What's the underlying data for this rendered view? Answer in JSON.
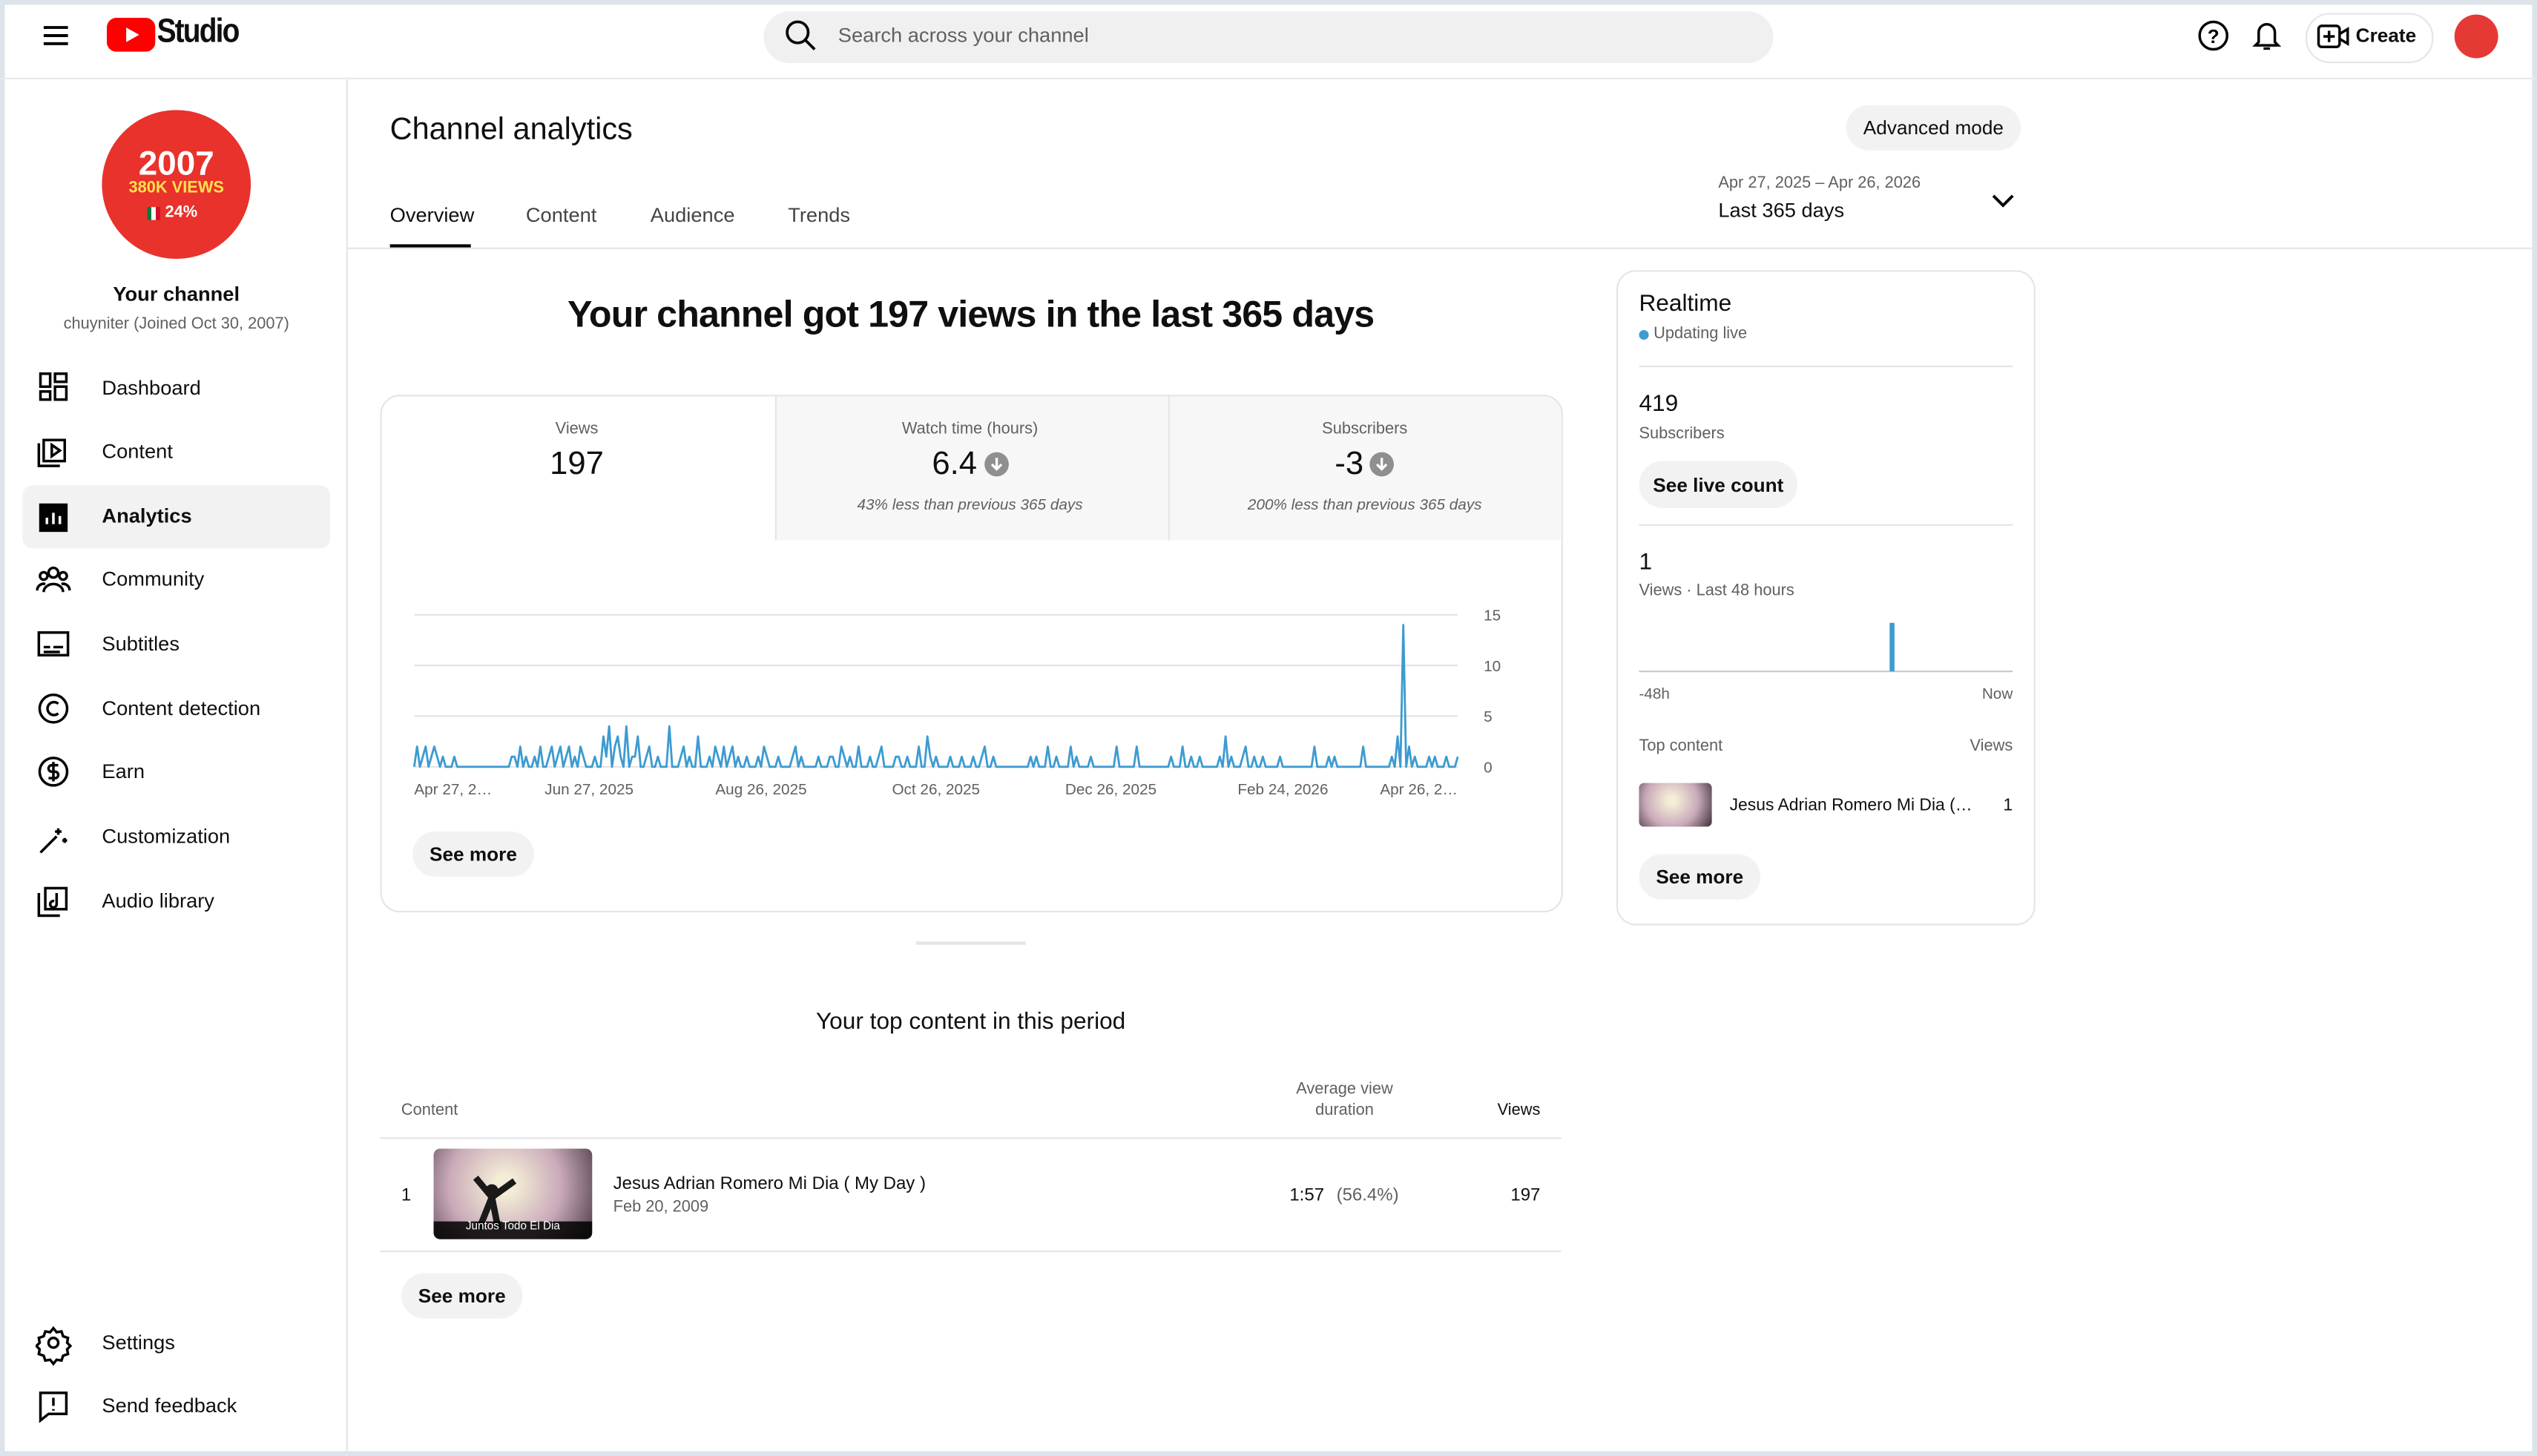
{
  "header": {
    "logo": "Studio",
    "search_placeholder": "Search across your channel",
    "create": "Create"
  },
  "sidebar": {
    "avatar_year": "2007",
    "avatar_views": "380K VIEWS",
    "avatar_pct": "24%",
    "channel_title": "Your channel",
    "channel_sub": "chuyniter (Joined Oct 30, 2007)",
    "nav": [
      "Dashboard",
      "Content",
      "Analytics",
      "Community",
      "Subtitles",
      "Content detection",
      "Earn",
      "Customization",
      "Audio library"
    ],
    "footer_nav": [
      "Settings",
      "Send feedback"
    ]
  },
  "page": {
    "title": "Channel analytics",
    "advanced_mode": "Advanced mode",
    "tabs": [
      "Overview",
      "Content",
      "Audience",
      "Trends"
    ],
    "date_range": "Apr 27, 2025 – Apr 26, 2026",
    "period": "Last 365 days"
  },
  "overview": {
    "headline": "Your channel got 197 views in the last 365 days",
    "metrics": [
      {
        "label": "Views",
        "value": 197
      },
      {
        "label": "Watch time (hours)",
        "value": 6.4,
        "note": "43% less than previous 365 days"
      },
      {
        "label": "Subscribers",
        "value": -3,
        "note": "200% less than previous 365 days"
      }
    ],
    "see_more": "See more"
  },
  "realtime": {
    "title": "Realtime",
    "status": "Updating live",
    "subscribers": 419,
    "subscribers_label": "Subscribers",
    "see_live_count": "See live count",
    "views": 1,
    "views_label": "Views · Last 48 hours",
    "top_content_label": "Top content",
    "views_col": "Views",
    "top_content": {
      "title": "Jesus Adrian Romero Mi Dia ( My Day )",
      "views": 1
    },
    "see_more": "See more"
  },
  "top_content": {
    "title": "Your top content in this period",
    "columns": [
      "Content",
      "Average view duration",
      "Views"
    ],
    "rows": [
      {
        "rank": 1,
        "title": "Jesus Adrian Romero Mi Dia ( My Day )",
        "date": "Feb 20, 2009",
        "thumb_caption": "Juntos Todo El Dia",
        "avg_duration": "1:57",
        "avg_pct": "(56.4%)",
        "views": 197
      }
    ],
    "see_more": "See more"
  },
  "chart_data": [
    {
      "type": "line",
      "color": "#3d9bd0",
      "grid": true,
      "xlim": [
        0,
        364
      ],
      "ylim": [
        0,
        15
      ],
      "yticks": [
        0,
        5,
        10,
        15
      ],
      "xticks": [
        {
          "value": 0,
          "label": "Apr 27, 2…"
        },
        {
          "value": 61,
          "label": "Jun 27, 2025"
        },
        {
          "value": 121,
          "label": "Aug 26, 2025"
        },
        {
          "value": 182,
          "label": "Oct 26, 2025"
        },
        {
          "value": 243,
          "label": "Dec 26, 2025"
        },
        {
          "value": 303,
          "label": "Feb 24, 2026"
        },
        {
          "value": 364,
          "label": "Apr 26, 2…"
        }
      ],
      "values": [
        0,
        2,
        0,
        1,
        2,
        0,
        1,
        2,
        1,
        0,
        1,
        0,
        0,
        0,
        1,
        0,
        0,
        0,
        0,
        0,
        0,
        0,
        0,
        0,
        0,
        0,
        0,
        0,
        0,
        0,
        0,
        0,
        0,
        0,
        1,
        1,
        0,
        2,
        0,
        1,
        0,
        0,
        1,
        0,
        2,
        0,
        0,
        1,
        2,
        0,
        1,
        2,
        0,
        1,
        2,
        0,
        1,
        0,
        2,
        1,
        0,
        0,
        0,
        1,
        0,
        0,
        3,
        1,
        4,
        0,
        2,
        3,
        1,
        0,
        4,
        0,
        1,
        1,
        3,
        0,
        0,
        1,
        2,
        0,
        0,
        1,
        0,
        0,
        0,
        4,
        0,
        0,
        0,
        1,
        2,
        0,
        1,
        0,
        0,
        3,
        0,
        0,
        0,
        1,
        0,
        2,
        1,
        0,
        2,
        0,
        1,
        2,
        0,
        1,
        0,
        0,
        1,
        0,
        0,
        0,
        1,
        0,
        2,
        1,
        0,
        0,
        0,
        1,
        0,
        0,
        0,
        0,
        1,
        2,
        0,
        1,
        0,
        0,
        0,
        0,
        0,
        1,
        0,
        0,
        0,
        1,
        1,
        0,
        0,
        2,
        1,
        0,
        1,
        0,
        0,
        2,
        0,
        0,
        0,
        1,
        0,
        0,
        1,
        2,
        0,
        0,
        0,
        0,
        1,
        1,
        0,
        0,
        1,
        0,
        0,
        0,
        2,
        0,
        0,
        3,
        1,
        0,
        1,
        0,
        0,
        0,
        0,
        1,
        0,
        0,
        0,
        1,
        0,
        0,
        0,
        1,
        0,
        0,
        1,
        2,
        0,
        0,
        1,
        0,
        0,
        0,
        0,
        0,
        0,
        0,
        0,
        0,
        0,
        0,
        0,
        1,
        0,
        1,
        0,
        0,
        0,
        2,
        0,
        0,
        1,
        0,
        0,
        0,
        0,
        2,
        0,
        1,
        0,
        0,
        0,
        0,
        1,
        0,
        0,
        0,
        0,
        0,
        0,
        0,
        0,
        2,
        0,
        0,
        0,
        0,
        0,
        0,
        2,
        0,
        0,
        0,
        0,
        0,
        0,
        0,
        0,
        0,
        0,
        0,
        1,
        0,
        0,
        0,
        2,
        0,
        0,
        1,
        0,
        0,
        1,
        0,
        0,
        0,
        0,
        0,
        0,
        1,
        0,
        3,
        0,
        1,
        0,
        0,
        0,
        1,
        2,
        0,
        0,
        1,
        0,
        0,
        1,
        0,
        0,
        0,
        0,
        0,
        1,
        0,
        0,
        0,
        0,
        0,
        0,
        0,
        0,
        0,
        0,
        0,
        2,
        0,
        0,
        0,
        0,
        1,
        0,
        1,
        0,
        0,
        0,
        0,
        0,
        0,
        0,
        0,
        0,
        2,
        0,
        0,
        0,
        0,
        0,
        0,
        0,
        0,
        0,
        1,
        0,
        3,
        0,
        14,
        0,
        2,
        0,
        1,
        0,
        0,
        0,
        0,
        1,
        0,
        1,
        0,
        0,
        0,
        1,
        0,
        0,
        0,
        1
      ]
    },
    {
      "type": "bar",
      "color": "#3d9bd0",
      "ylim": [
        0,
        1
      ],
      "categories": [
        "-48h",
        null,
        null,
        null,
        null,
        null,
        null,
        null,
        null,
        null,
        null,
        null,
        null,
        null,
        null,
        null,
        null,
        null,
        null,
        null,
        null,
        null,
        null,
        null,
        null,
        null,
        null,
        null,
        null,
        null,
        null,
        null,
        null,
        null,
        null,
        null,
        null,
        null,
        null,
        null,
        null,
        null,
        null,
        null,
        null,
        null,
        null,
        "Now"
      ],
      "values": [
        0,
        0,
        0,
        0,
        0,
        0,
        0,
        0,
        0,
        0,
        0,
        0,
        0,
        0,
        0,
        0,
        0,
        0,
        0,
        0,
        0,
        0,
        0,
        0,
        0,
        0,
        0,
        0,
        0,
        0,
        0,
        0,
        1,
        0,
        0,
        0,
        0,
        0,
        0,
        0,
        0,
        0,
        0,
        0,
        0,
        0,
        0,
        0
      ]
    }
  ]
}
